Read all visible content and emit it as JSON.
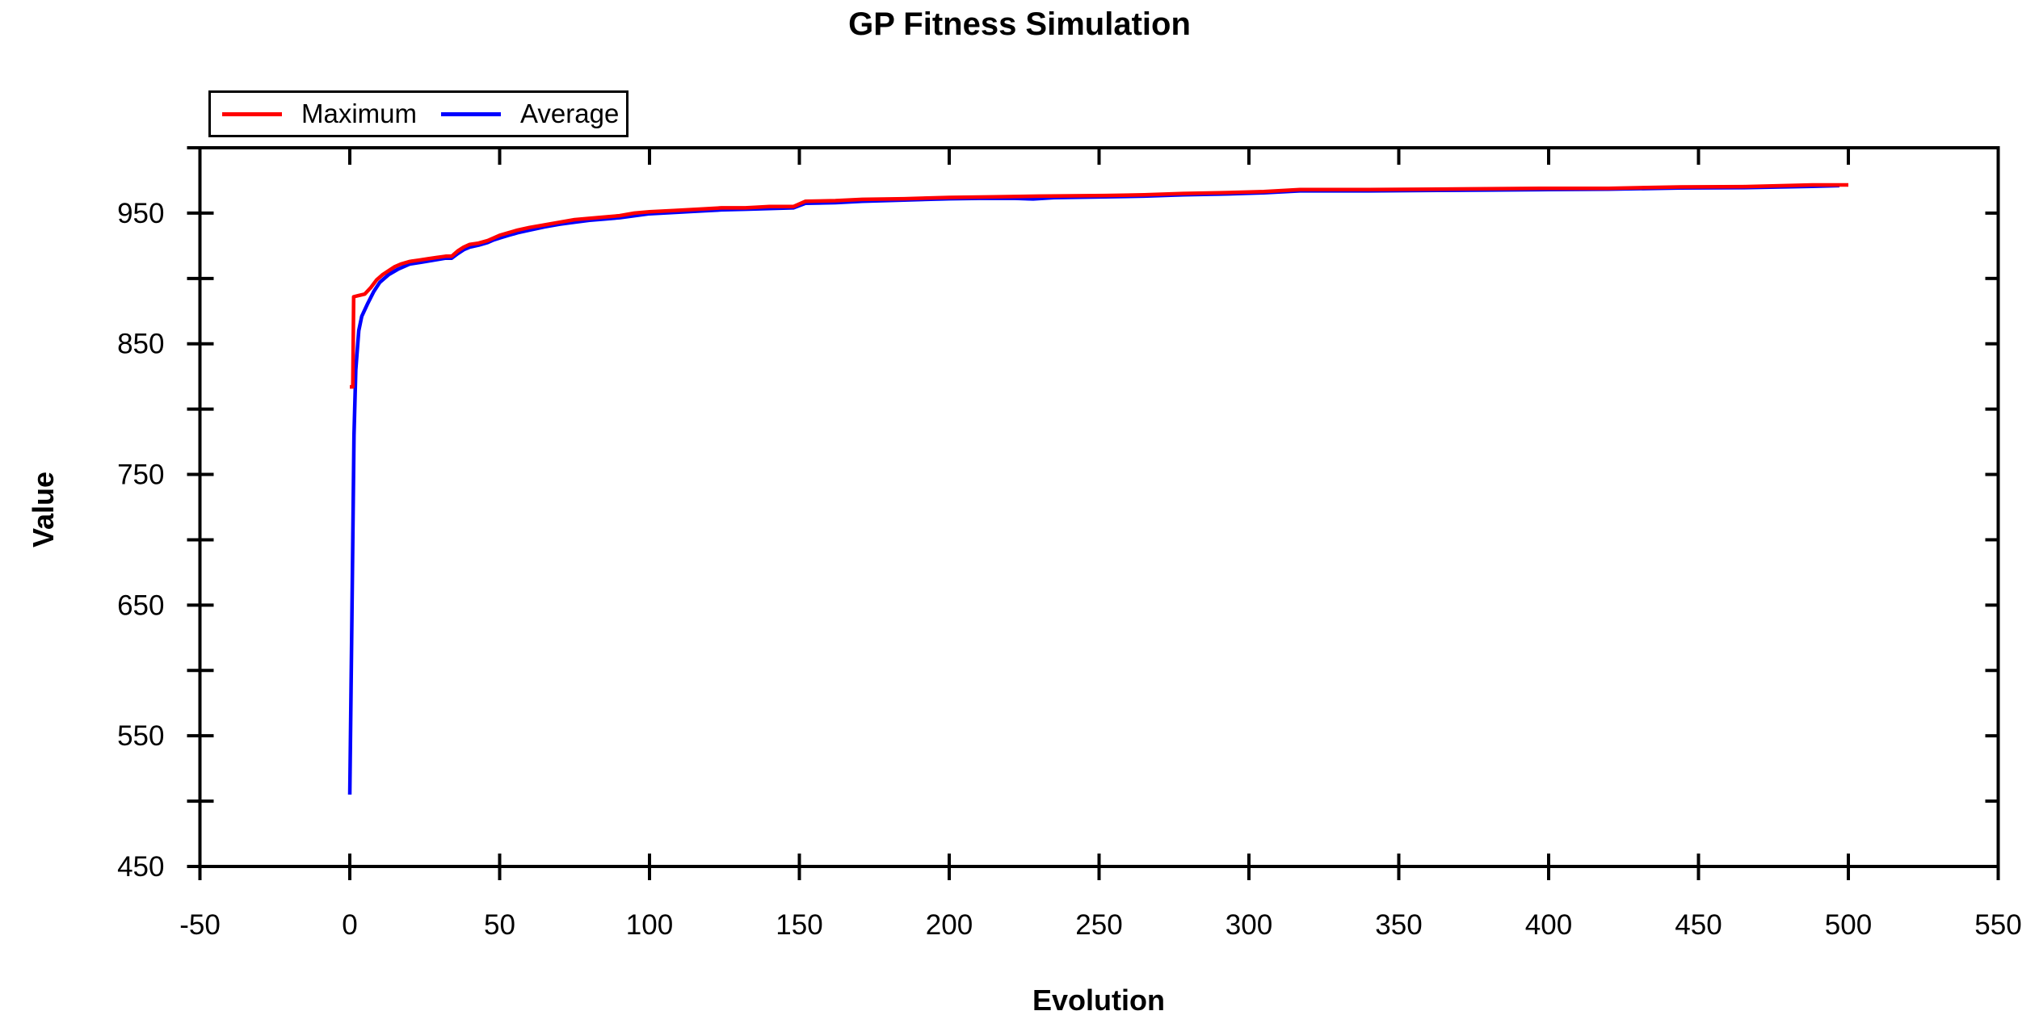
{
  "chart_data": {
    "type": "line",
    "title": "GP Fitness Simulation",
    "xlabel": "Evolution",
    "ylabel": "Value",
    "xlim": [
      -50,
      550
    ],
    "ylim": [
      450,
      1000
    ],
    "grid": false,
    "background_color": "#ffffff",
    "frame_color": "#000000",
    "legend": {
      "position": "top-left",
      "border": true,
      "items": [
        {
          "label": "Maximum",
          "color": "#ff0000"
        },
        {
          "label": "Average",
          "color": "#0000ff"
        }
      ]
    },
    "xticks": [
      {
        "v": -50,
        "label": "-50"
      },
      {
        "v": 0,
        "label": "0"
      },
      {
        "v": 50,
        "label": "50"
      },
      {
        "v": 100,
        "label": "100"
      },
      {
        "v": 150,
        "label": "150"
      },
      {
        "v": 200,
        "label": "200"
      },
      {
        "v": 250,
        "label": "250"
      },
      {
        "v": 300,
        "label": "300"
      },
      {
        "v": 350,
        "label": "350"
      },
      {
        "v": 400,
        "label": "400"
      },
      {
        "v": 450,
        "label": "450"
      },
      {
        "v": 500,
        "label": "500"
      },
      {
        "v": 550,
        "label": "550"
      }
    ],
    "yticks": [
      {
        "v": 450,
        "label": "450"
      },
      {
        "v": 500,
        "label": ""
      },
      {
        "v": 550,
        "label": "550"
      },
      {
        "v": 600,
        "label": ""
      },
      {
        "v": 650,
        "label": "650"
      },
      {
        "v": 700,
        "label": ""
      },
      {
        "v": 750,
        "label": "750"
      },
      {
        "v": 800,
        "label": ""
      },
      {
        "v": 850,
        "label": "850"
      },
      {
        "v": 900,
        "label": ""
      },
      {
        "v": 950,
        "label": "950"
      },
      {
        "v": 1000,
        "label": ""
      }
    ],
    "series": [
      {
        "name": "Average",
        "color": "#0000ff",
        "points": [
          [
            0,
            505
          ],
          [
            0.7,
            640
          ],
          [
            1.4,
            780
          ],
          [
            2,
            830
          ],
          [
            3,
            860
          ],
          [
            4,
            871
          ],
          [
            6,
            881
          ],
          [
            8,
            890
          ],
          [
            10,
            897
          ],
          [
            13,
            903
          ],
          [
            16,
            907
          ],
          [
            20,
            911
          ],
          [
            24,
            912.5
          ],
          [
            28,
            914
          ],
          [
            32,
            915.5
          ],
          [
            34,
            915.5
          ],
          [
            36,
            919
          ],
          [
            38,
            922
          ],
          [
            40,
            924
          ],
          [
            43,
            925.5
          ],
          [
            46,
            927.5
          ],
          [
            48,
            929.5
          ],
          [
            50,
            931
          ],
          [
            53,
            933
          ],
          [
            56,
            935
          ],
          [
            60,
            937
          ],
          [
            65,
            939.5
          ],
          [
            70,
            941.5
          ],
          [
            75,
            943
          ],
          [
            80,
            944.5
          ],
          [
            85,
            945.5
          ],
          [
            90,
            946.5
          ],
          [
            95,
            948
          ],
          [
            100,
            949.5
          ],
          [
            108,
            950.5
          ],
          [
            116,
            951.5
          ],
          [
            124,
            952.5
          ],
          [
            132,
            953
          ],
          [
            140,
            953.5
          ],
          [
            148,
            954
          ],
          [
            152,
            957.5
          ],
          [
            162,
            958
          ],
          [
            171,
            959
          ],
          [
            185,
            960
          ],
          [
            200,
            961
          ],
          [
            210,
            961.3
          ],
          [
            222,
            961.3
          ],
          [
            228,
            960.8
          ],
          [
            235,
            961.8
          ],
          [
            252,
            962.5
          ],
          [
            265,
            963
          ],
          [
            278,
            964
          ],
          [
            290,
            964.5
          ],
          [
            305,
            965.5
          ],
          [
            317,
            967
          ],
          [
            340,
            967
          ],
          [
            370,
            967.5
          ],
          [
            400,
            968
          ],
          [
            420,
            968.3
          ],
          [
            444,
            969.3
          ],
          [
            465,
            969.5
          ],
          [
            488,
            970.5
          ],
          [
            497,
            971
          ]
        ]
      },
      {
        "name": "Maximum",
        "color": "#ff0000",
        "points": [
          [
            0,
            817
          ],
          [
            1,
            817
          ],
          [
            1.3,
            886
          ],
          [
            3,
            887
          ],
          [
            5,
            888
          ],
          [
            7,
            893
          ],
          [
            9,
            899
          ],
          [
            11,
            903
          ],
          [
            13,
            906
          ],
          [
            15,
            909
          ],
          [
            17,
            911
          ],
          [
            20,
            913
          ],
          [
            23,
            914
          ],
          [
            26,
            915
          ],
          [
            29,
            916
          ],
          [
            32,
            917
          ],
          [
            34,
            917
          ],
          [
            36,
            921
          ],
          [
            38,
            924
          ],
          [
            40,
            926
          ],
          [
            43,
            927
          ],
          [
            46,
            929
          ],
          [
            48,
            931
          ],
          [
            50,
            933
          ],
          [
            53,
            935
          ],
          [
            56,
            937
          ],
          [
            60,
            939
          ],
          [
            65,
            941
          ],
          [
            70,
            943
          ],
          [
            75,
            945
          ],
          [
            80,
            946
          ],
          [
            85,
            947
          ],
          [
            90,
            948
          ],
          [
            95,
            950
          ],
          [
            100,
            951
          ],
          [
            108,
            952
          ],
          [
            116,
            953
          ],
          [
            124,
            954
          ],
          [
            132,
            954
          ],
          [
            140,
            955
          ],
          [
            148,
            955
          ],
          [
            152,
            959
          ],
          [
            162,
            959.5
          ],
          [
            171,
            960.5
          ],
          [
            185,
            961
          ],
          [
            200,
            962
          ],
          [
            215,
            962.5
          ],
          [
            230,
            963
          ],
          [
            252,
            963.5
          ],
          [
            265,
            964
          ],
          [
            278,
            965
          ],
          [
            290,
            965.5
          ],
          [
            305,
            966.5
          ],
          [
            317,
            968
          ],
          [
            340,
            968
          ],
          [
            370,
            968.5
          ],
          [
            400,
            969
          ],
          [
            420,
            969
          ],
          [
            444,
            970
          ],
          [
            465,
            970.3
          ],
          [
            488,
            971.6
          ],
          [
            500,
            971.6
          ]
        ]
      }
    ]
  }
}
